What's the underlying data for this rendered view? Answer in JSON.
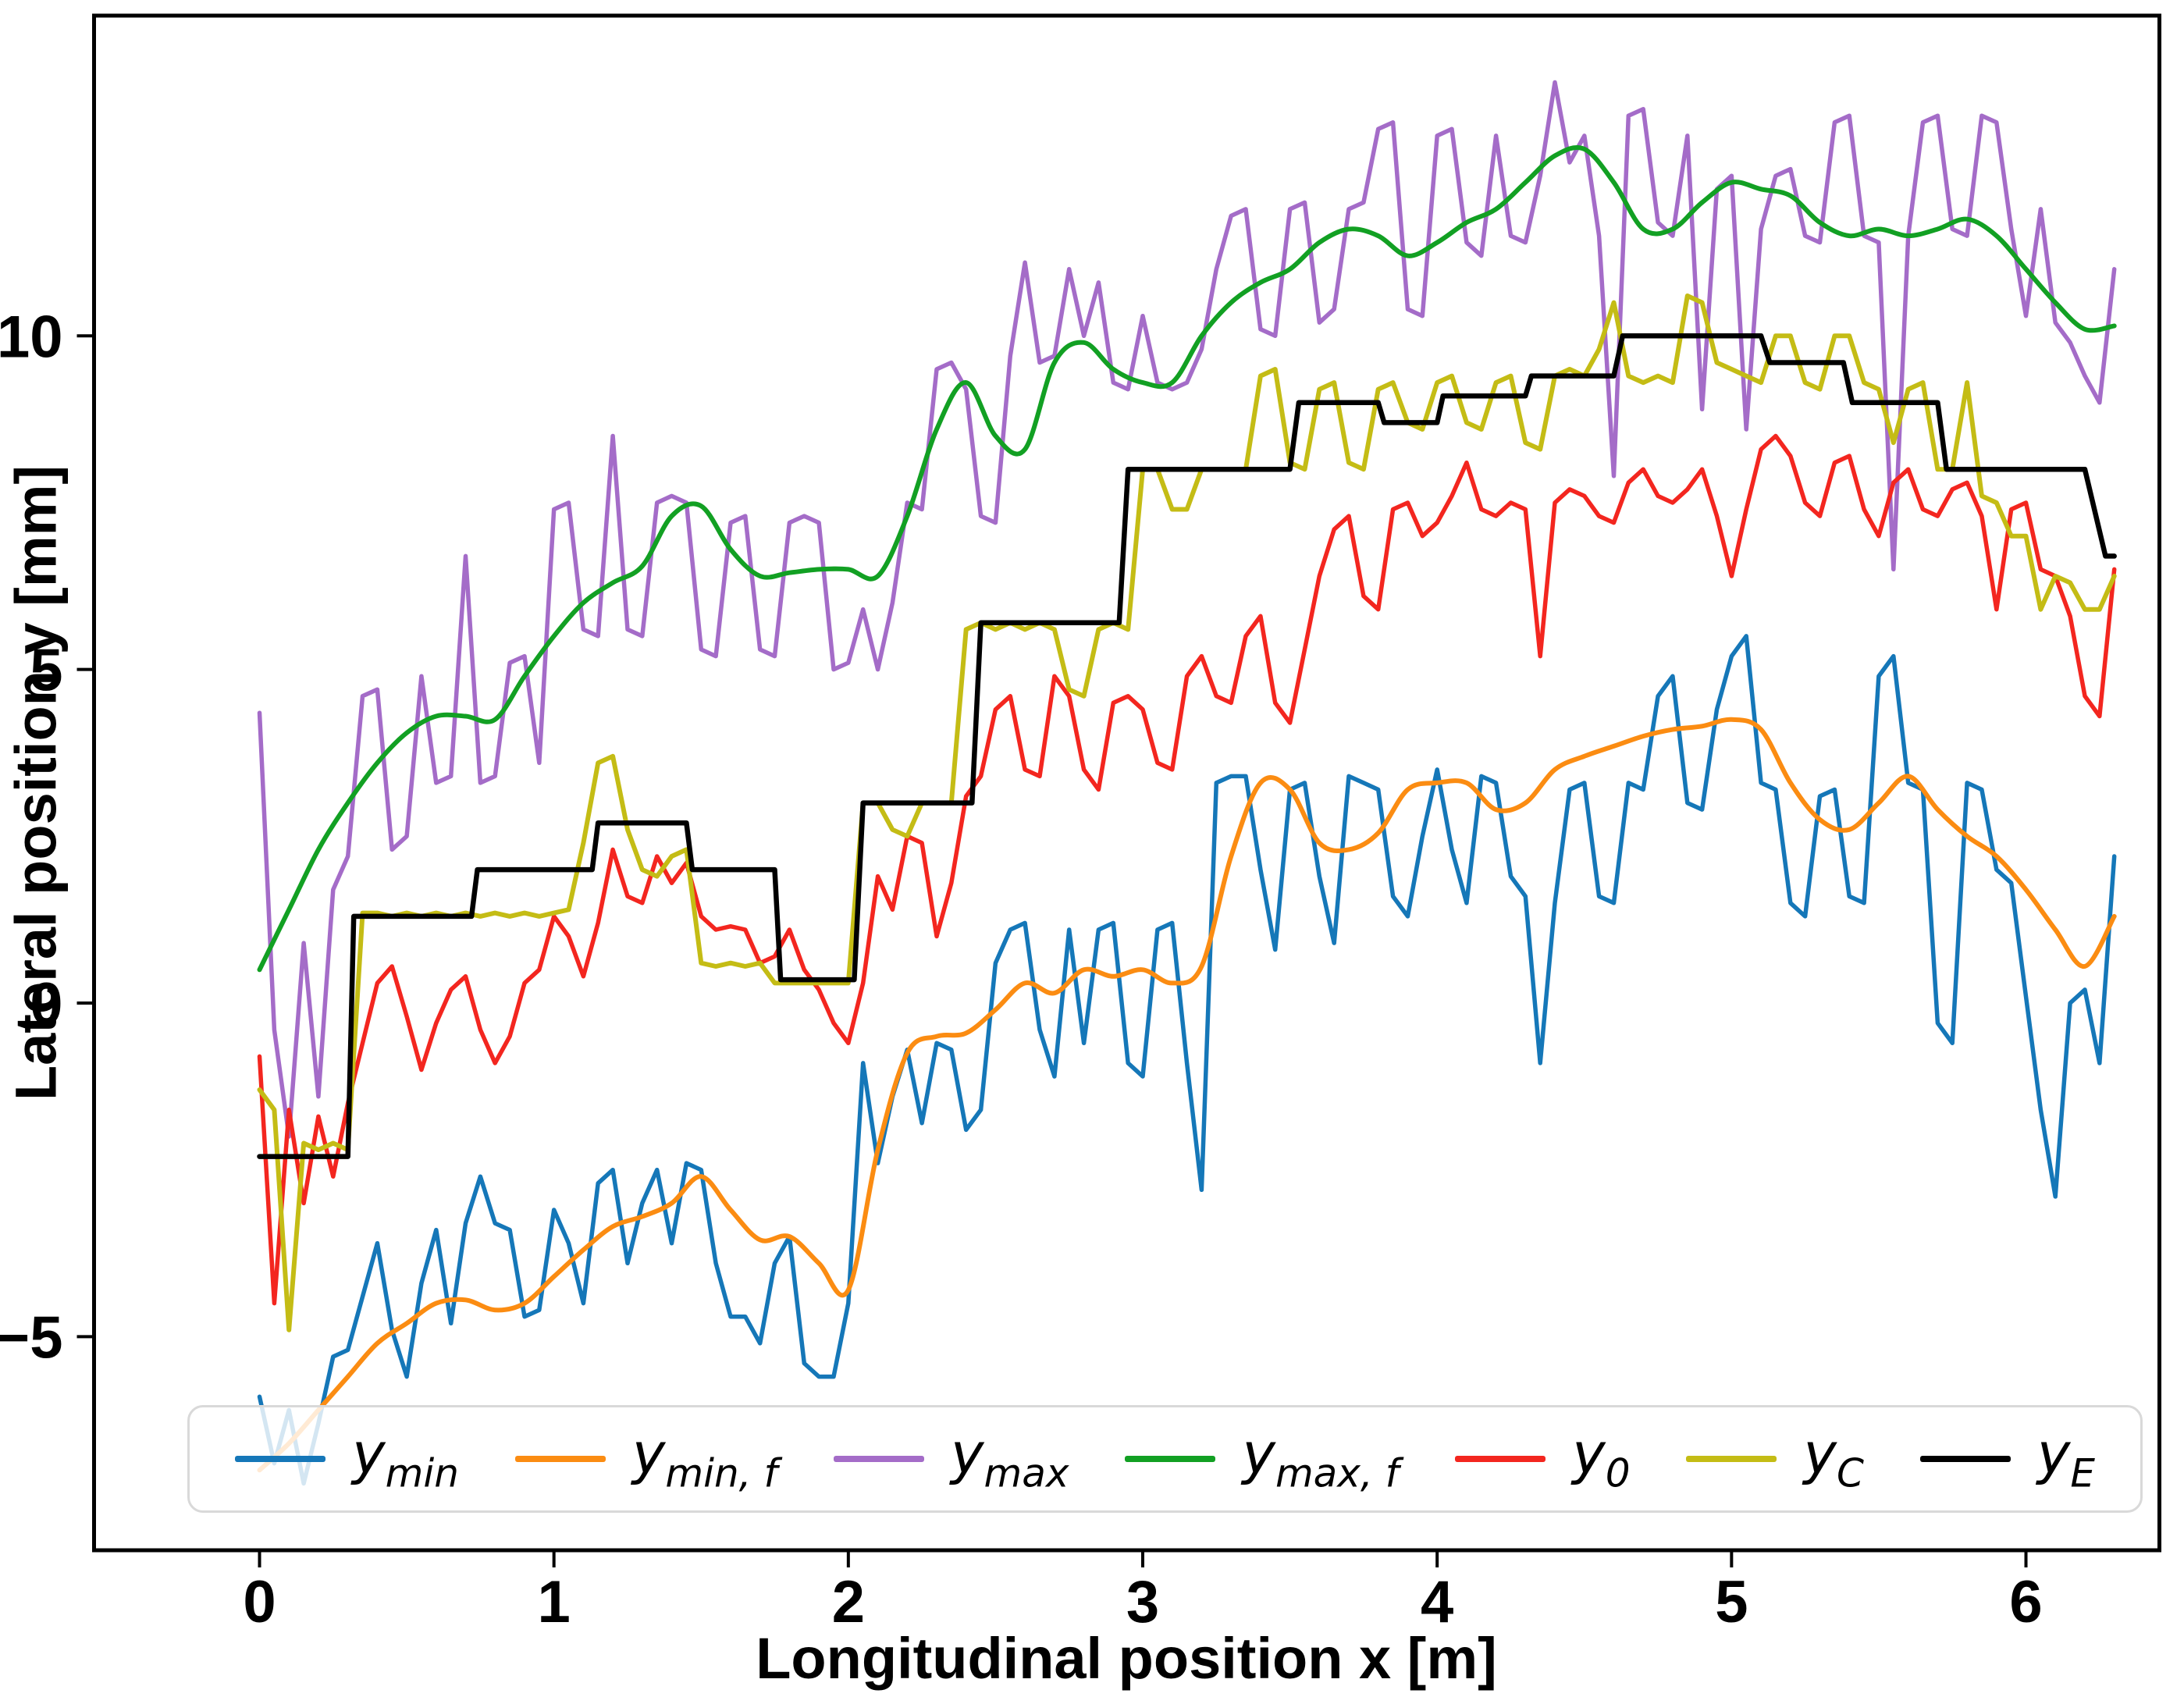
{
  "figure": {
    "background": "#ffffff",
    "frame_color": "#000000"
  },
  "chart_data": {
    "type": "line",
    "title": "",
    "xlabel": "Longitudinal position x [m]",
    "ylabel": "Lateral position y [mm]",
    "xlim": [
      -0.56,
      6.46
    ],
    "ylim": [
      -8.2,
      14.8
    ],
    "grid": false,
    "legend_position": "lower center",
    "xticks": [
      0,
      1,
      2,
      3,
      4,
      5,
      6
    ],
    "xtick_labels": [
      "0",
      "1",
      "2",
      "3",
      "4",
      "5",
      "6"
    ],
    "yticks": [
      -5,
      0,
      5,
      10
    ],
    "ytick_labels": [
      "−5",
      "0",
      "5",
      "10"
    ],
    "series": [
      {
        "name": "y_min",
        "label_base": "y",
        "label_sub": "min",
        "color": "#1577b8",
        "line_width": 5.5,
        "smooth": false,
        "x_start": 0,
        "x_step": 0.05,
        "values": [
          -5.9,
          -6.9,
          -6.1,
          -7.2,
          -6.3,
          -5.3,
          -5.2,
          -4.4,
          -3.6,
          -4.9,
          -5.6,
          -4.2,
          -3.4,
          -4.8,
          -3.3,
          -2.6,
          -3.3,
          -3.4,
          -4.7,
          -4.6,
          -3.1,
          -3.6,
          -4.5,
          -2.7,
          -2.5,
          -3.9,
          -3.0,
          -2.5,
          -3.6,
          -2.4,
          -2.5,
          -3.9,
          -4.7,
          -4.7,
          -5.1,
          -3.9,
          -3.5,
          -5.4,
          -5.6,
          -5.6,
          -4.5,
          -0.9,
          -2.4,
          -1.4,
          -0.7,
          -1.8,
          -0.6,
          -0.7,
          -1.9,
          -1.6,
          0.6,
          1.1,
          1.2,
          -0.4,
          -1.1,
          1.1,
          -0.6,
          1.1,
          1.2,
          -0.9,
          -1.1,
          1.1,
          1.2,
          -0.9,
          -2.8,
          3.3,
          3.4,
          3.4,
          2.0,
          0.8,
          3.2,
          3.3,
          1.9,
          0.9,
          3.4,
          3.3,
          3.2,
          1.6,
          1.3,
          2.5,
          3.5,
          2.3,
          1.5,
          3.4,
          3.3,
          1.9,
          1.6,
          -0.9,
          1.5,
          3.2,
          3.3,
          1.6,
          1.5,
          3.3,
          3.2,
          4.6,
          4.9,
          3.0,
          2.9,
          4.4,
          5.2,
          5.5,
          3.3,
          3.2,
          1.5,
          1.3,
          3.1,
          3.2,
          1.6,
          1.5,
          4.9,
          5.2,
          3.3,
          3.2,
          -0.3,
          -0.6,
          3.3,
          3.2,
          2.0,
          1.8,
          0.1,
          -1.6,
          -2.9,
          0.0,
          0.2,
          -0.9,
          2.2
        ]
      },
      {
        "name": "y_min_f",
        "label_base": "y",
        "label_sub": "min, f",
        "color": "#fb8c12",
        "line_width": 6,
        "smooth": true,
        "x_start": 0,
        "x_step": 0.1,
        "values": [
          -7.0,
          -6.6,
          -6.1,
          -5.6,
          -5.1,
          -4.8,
          -4.5,
          -4.45,
          -4.6,
          -4.5,
          -4.1,
          -3.7,
          -3.35,
          -3.2,
          -3.0,
          -2.6,
          -3.1,
          -3.55,
          -3.5,
          -3.9,
          -4.3,
          -2.2,
          -0.75,
          -0.5,
          -0.45,
          -0.1,
          0.3,
          0.15,
          0.5,
          0.4,
          0.5,
          0.3,
          0.55,
          2.2,
          3.3,
          3.2,
          2.4,
          2.3,
          2.55,
          3.2,
          3.3,
          3.3,
          2.9,
          3.0,
          3.5,
          3.7,
          3.85,
          4.0,
          4.1,
          4.15,
          4.25,
          4.1,
          3.3,
          2.75,
          2.6,
          3.0,
          3.4,
          2.9,
          2.5,
          2.2,
          1.7,
          1.1,
          0.55,
          1.3
        ]
      },
      {
        "name": "y_max",
        "label_base": "y",
        "label_sub": "max",
        "color": "#a46cc8",
        "line_width": 5.5,
        "smooth": false,
        "x_start": 0,
        "x_step": 0.05,
        "values": [
          4.35,
          -0.4,
          -2.0,
          0.9,
          -1.4,
          1.7,
          2.2,
          4.6,
          4.7,
          2.3,
          2.5,
          4.9,
          3.3,
          3.4,
          6.7,
          3.3,
          3.4,
          5.1,
          5.2,
          3.6,
          7.4,
          7.5,
          5.6,
          5.5,
          8.5,
          5.6,
          5.5,
          7.5,
          7.6,
          7.5,
          5.3,
          5.2,
          7.2,
          7.3,
          5.3,
          5.2,
          7.2,
          7.3,
          7.2,
          5.0,
          5.1,
          5.9,
          5.0,
          6.0,
          7.5,
          7.4,
          9.5,
          9.6,
          9.2,
          7.3,
          7.2,
          9.7,
          11.1,
          9.6,
          9.7,
          11.0,
          10.0,
          10.8,
          9.3,
          9.2,
          10.3,
          9.3,
          9.2,
          9.3,
          9.8,
          11.0,
          11.8,
          11.9,
          10.1,
          10.0,
          11.9,
          12.0,
          10.2,
          10.4,
          11.9,
          12.0,
          13.1,
          13.2,
          10.4,
          10.3,
          13.0,
          13.1,
          11.4,
          11.2,
          13.0,
          11.5,
          11.4,
          12.4,
          13.8,
          12.6,
          13.0,
          11.5,
          7.9,
          13.3,
          13.4,
          11.7,
          11.5,
          13.0,
          8.9,
          12.2,
          12.4,
          8.6,
          11.6,
          12.4,
          12.5,
          11.5,
          11.4,
          13.2,
          13.3,
          11.5,
          11.4,
          6.5,
          11.5,
          13.2,
          13.3,
          11.6,
          11.5,
          13.3,
          13.2,
          11.6,
          10.3,
          11.9,
          10.2,
          9.9,
          9.4,
          9.0,
          11.0
        ]
      },
      {
        "name": "y_max_f",
        "label_base": "y",
        "label_sub": "max, f",
        "color": "#12a023",
        "line_width": 6,
        "smooth": true,
        "x_start": 0,
        "x_step": 0.1,
        "values": [
          0.5,
          1.4,
          2.3,
          3.0,
          3.6,
          4.05,
          4.3,
          4.3,
          4.25,
          4.9,
          5.5,
          6.0,
          6.3,
          6.55,
          7.3,
          7.45,
          6.8,
          6.4,
          6.45,
          6.5,
          6.5,
          6.4,
          7.3,
          8.6,
          9.3,
          8.5,
          8.3,
          9.6,
          9.9,
          9.5,
          9.3,
          9.3,
          10.0,
          10.5,
          10.8,
          11.0,
          11.4,
          11.6,
          11.5,
          11.2,
          11.4,
          11.7,
          11.9,
          12.3,
          12.7,
          12.8,
          12.3,
          11.6,
          11.6,
          12.0,
          12.3,
          12.2,
          12.1,
          11.7,
          11.5,
          11.6,
          11.5,
          11.6,
          11.75,
          11.5,
          11.0,
          10.5,
          10.1,
          10.15
        ]
      },
      {
        "name": "y_0",
        "label_base": "y",
        "label_sub": "0",
        "color": "#f3261f",
        "line_width": 5.5,
        "smooth": false,
        "x_start": 0,
        "x_step": 0.05,
        "values": [
          -0.8,
          -4.5,
          -1.6,
          -3.0,
          -1.7,
          -2.6,
          -1.5,
          -0.6,
          0.3,
          0.55,
          -0.2,
          -1.0,
          -0.3,
          0.2,
          0.4,
          -0.4,
          -0.9,
          -0.5,
          0.3,
          0.5,
          1.3,
          1.0,
          0.4,
          1.2,
          2.3,
          1.6,
          1.5,
          2.2,
          1.8,
          2.1,
          1.3,
          1.1,
          1.15,
          1.1,
          0.6,
          0.7,
          1.1,
          0.5,
          0.2,
          -0.3,
          -0.6,
          0.3,
          1.9,
          1.4,
          2.5,
          2.4,
          1.0,
          1.8,
          3.1,
          3.4,
          4.4,
          4.6,
          3.5,
          3.4,
          4.9,
          4.6,
          3.5,
          3.2,
          4.5,
          4.6,
          4.4,
          3.6,
          3.5,
          4.9,
          5.2,
          4.6,
          4.5,
          5.5,
          5.8,
          4.5,
          4.2,
          5.3,
          6.4,
          7.1,
          7.3,
          6.1,
          5.9,
          7.4,
          7.5,
          7.0,
          7.2,
          7.6,
          8.1,
          7.4,
          7.3,
          7.5,
          7.4,
          5.2,
          7.5,
          7.7,
          7.6,
          7.3,
          7.2,
          7.8,
          8.0,
          7.6,
          7.5,
          7.7,
          8.0,
          7.3,
          6.4,
          7.4,
          8.3,
          8.5,
          8.2,
          7.5,
          7.3,
          8.1,
          8.2,
          7.4,
          7.0,
          7.8,
          8.0,
          7.4,
          7.3,
          7.7,
          7.8,
          7.3,
          5.9,
          7.4,
          7.5,
          6.5,
          6.4,
          5.8,
          4.6,
          4.3,
          6.5
        ]
      },
      {
        "name": "y_C",
        "label_base": "y",
        "label_sub": "C",
        "color": "#c4bc15",
        "line_width": 6,
        "smooth": false,
        "x_start": 0,
        "x_step": 0.05,
        "values": [
          -1.3,
          -1.6,
          -4.9,
          -2.1,
          -2.2,
          -2.1,
          -2.2,
          1.35,
          1.35,
          1.3,
          1.35,
          1.3,
          1.35,
          1.3,
          1.35,
          1.3,
          1.35,
          1.3,
          1.35,
          1.3,
          1.35,
          1.4,
          2.4,
          3.6,
          3.7,
          2.6,
          2.0,
          1.9,
          2.2,
          2.3,
          0.6,
          0.55,
          0.6,
          0.55,
          0.6,
          0.3,
          0.3,
          0.3,
          0.3,
          0.3,
          0.3,
          3.0,
          3.0,
          2.6,
          2.5,
          3.0,
          3.0,
          3.0,
          5.6,
          5.7,
          5.6,
          5.7,
          5.6,
          5.7,
          5.6,
          4.7,
          4.6,
          5.6,
          5.7,
          5.6,
          8.0,
          8.0,
          7.4,
          7.4,
          8.0,
          8.0,
          8.0,
          8.0,
          9.4,
          9.5,
          8.1,
          8.0,
          9.2,
          9.3,
          8.1,
          8.0,
          9.2,
          9.3,
          8.7,
          8.6,
          9.3,
          9.4,
          8.7,
          8.6,
          9.3,
          9.4,
          8.4,
          8.3,
          9.4,
          9.5,
          9.4,
          9.8,
          10.5,
          9.4,
          9.3,
          9.4,
          9.3,
          10.6,
          10.5,
          9.6,
          9.5,
          9.4,
          9.3,
          10.0,
          10.0,
          9.3,
          9.2,
          10.0,
          10.0,
          9.3,
          9.2,
          8.4,
          9.2,
          9.3,
          8.0,
          8.0,
          9.3,
          7.6,
          7.5,
          7.0,
          7.0,
          5.9,
          6.4,
          6.3,
          5.9,
          5.9,
          6.4
        ]
      },
      {
        "name": "y_E",
        "label_base": "y",
        "label_sub": "E",
        "color": "#000000",
        "line_width": 6.5,
        "smooth": false,
        "points": [
          [
            0,
            -2.3
          ],
          [
            0.3,
            -2.3
          ],
          [
            0.32,
            1.3
          ],
          [
            0.72,
            1.3
          ],
          [
            0.74,
            2.0
          ],
          [
            1.13,
            2.0
          ],
          [
            1.15,
            2.7
          ],
          [
            1.45,
            2.7
          ],
          [
            1.47,
            2.0
          ],
          [
            1.75,
            2.0
          ],
          [
            1.77,
            0.35
          ],
          [
            2.02,
            0.35
          ],
          [
            2.05,
            3.0
          ],
          [
            2.42,
            3.0
          ],
          [
            2.45,
            5.7
          ],
          [
            2.92,
            5.7
          ],
          [
            2.95,
            8.0
          ],
          [
            3.5,
            8.0
          ],
          [
            3.53,
            9.0
          ],
          [
            3.8,
            9.0
          ],
          [
            3.82,
            8.7
          ],
          [
            4.0,
            8.7
          ],
          [
            4.02,
            9.1
          ],
          [
            4.3,
            9.1
          ],
          [
            4.32,
            9.4
          ],
          [
            4.6,
            9.4
          ],
          [
            4.63,
            10.0
          ],
          [
            5.1,
            10.0
          ],
          [
            5.13,
            9.6
          ],
          [
            5.38,
            9.6
          ],
          [
            5.41,
            9.0
          ],
          [
            5.7,
            9.0
          ],
          [
            5.73,
            8.0
          ],
          [
            6.2,
            8.0
          ],
          [
            6.27,
            6.7
          ],
          [
            6.3,
            6.7
          ]
        ]
      }
    ]
  }
}
